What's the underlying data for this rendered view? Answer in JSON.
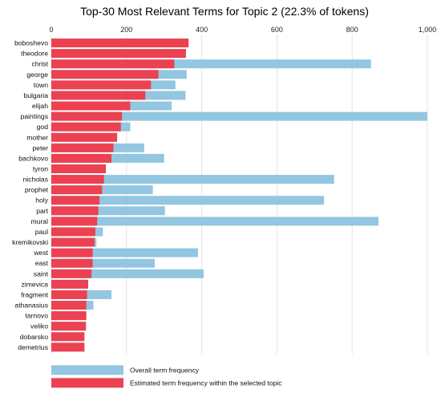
{
  "chart_data": {
    "type": "bar",
    "orientation": "horizontal",
    "stacking": "overlay",
    "title": "Top-30 Most Relevant Terms for Topic 2 (22.3% of tokens)",
    "xlim": [
      0,
      1000
    ],
    "x_ticks": [
      0,
      200,
      400,
      600,
      800,
      1000
    ],
    "x_tick_labels": [
      "0",
      "200",
      "400",
      "600",
      "800",
      "1,000"
    ],
    "x_axis_position": "top",
    "grid": "vertical",
    "legend_position": "bottom-left",
    "colors": {
      "overall": "#93c6e0",
      "topic": "#ec4150"
    },
    "categories": [
      "boboshevo",
      "theodore",
      "christ",
      "george",
      "town",
      "bulgaria",
      "elijah",
      "paintings",
      "god",
      "mother",
      "peter",
      "bachkovo",
      "tyron",
      "nicholas",
      "prophet",
      "holy",
      "part",
      "mural",
      "paul",
      "kremikovski",
      "west",
      "east",
      "saint",
      "zimevica",
      "fragment",
      "athanasius",
      "tarnovo",
      "veliko",
      "dobarsko",
      "demetrius"
    ],
    "series": [
      {
        "name": "Overall term frequency",
        "values": [
          360,
          358,
          850,
          360,
          330,
          357,
          320,
          1000,
          210,
          175,
          247,
          300,
          145,
          752,
          270,
          725,
          302,
          870,
          137,
          120,
          390,
          275,
          405,
          98,
          160,
          112,
          93,
          92,
          88,
          88
        ]
      },
      {
        "name": "Estimated term frequency within the selected topic",
        "values": [
          365,
          358,
          327,
          285,
          265,
          250,
          210,
          188,
          185,
          175,
          165,
          160,
          145,
          140,
          135,
          128,
          125,
          122,
          117,
          115,
          110,
          110,
          107,
          98,
          95,
          93,
          93,
          92,
          88,
          88
        ]
      }
    ]
  }
}
